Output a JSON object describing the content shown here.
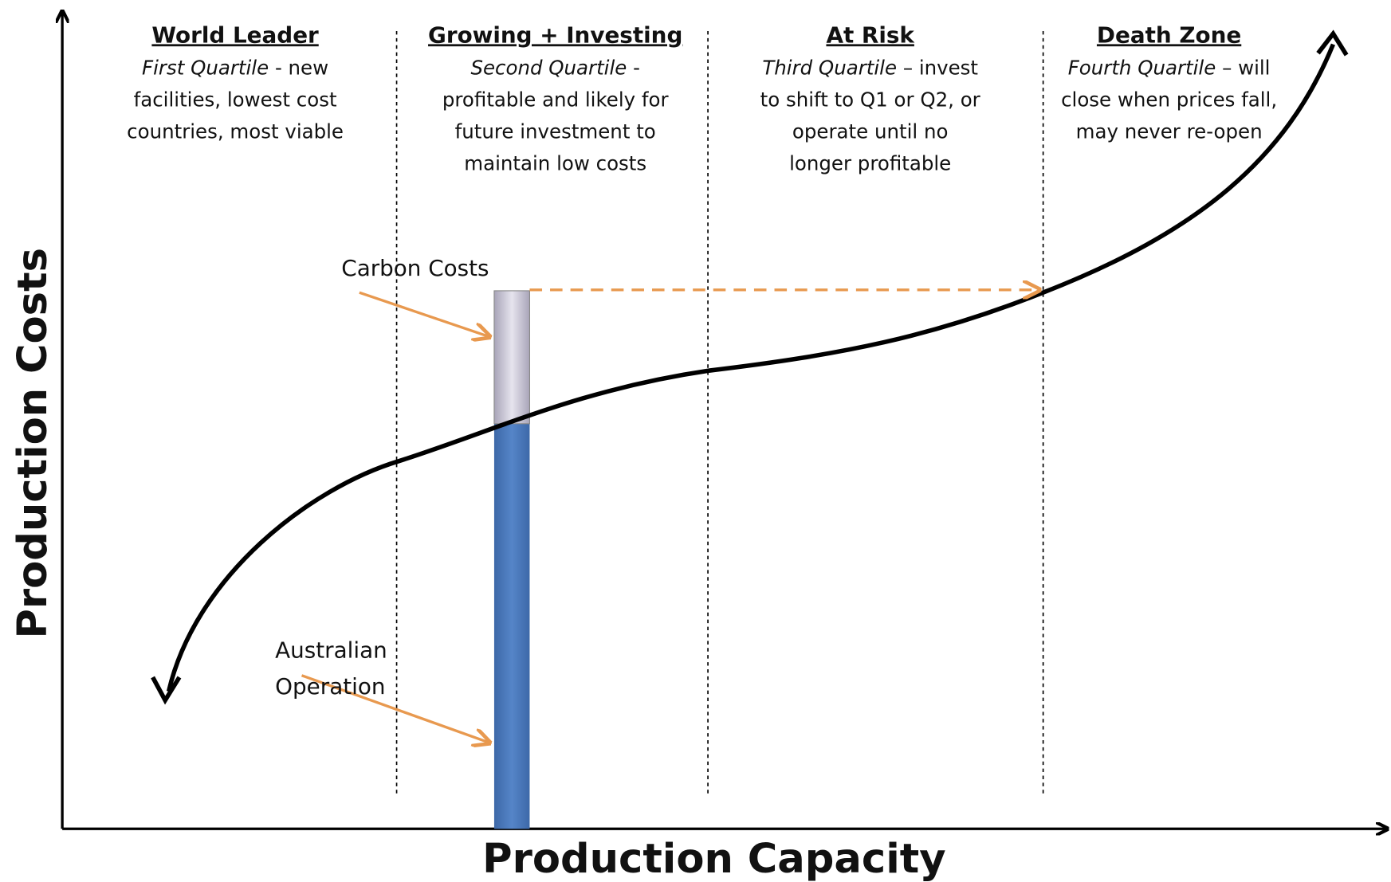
{
  "axes": {
    "y_label": "Production Costs",
    "x_label": "Production Capacity"
  },
  "quadrants": [
    {
      "title": "World Leader",
      "quartile": "First Quartile",
      "first_line": "- new",
      "lines": [
        "facilities, lowest cost",
        "countries, most viable"
      ]
    },
    {
      "title": "Growing + Investing",
      "quartile": "Second Quartile",
      "first_line": "-",
      "lines": [
        "profitable and likely for",
        "future investment to",
        "maintain low costs"
      ]
    },
    {
      "title": "At Risk",
      "quartile": "Third Quartile",
      "first_line": "– invest",
      "lines": [
        "to shift to Q1 or Q2, or",
        "operate  until no",
        "longer profitable"
      ]
    },
    {
      "title": "Death Zone",
      "quartile": "Fourth Quartile",
      "first_line": "– will",
      "lines": [
        "close when prices fall,",
        "may never re-open"
      ]
    }
  ],
  "annotations": {
    "carbon": "Carbon Costs",
    "operation": [
      "Australian",
      "Operation"
    ]
  }
}
